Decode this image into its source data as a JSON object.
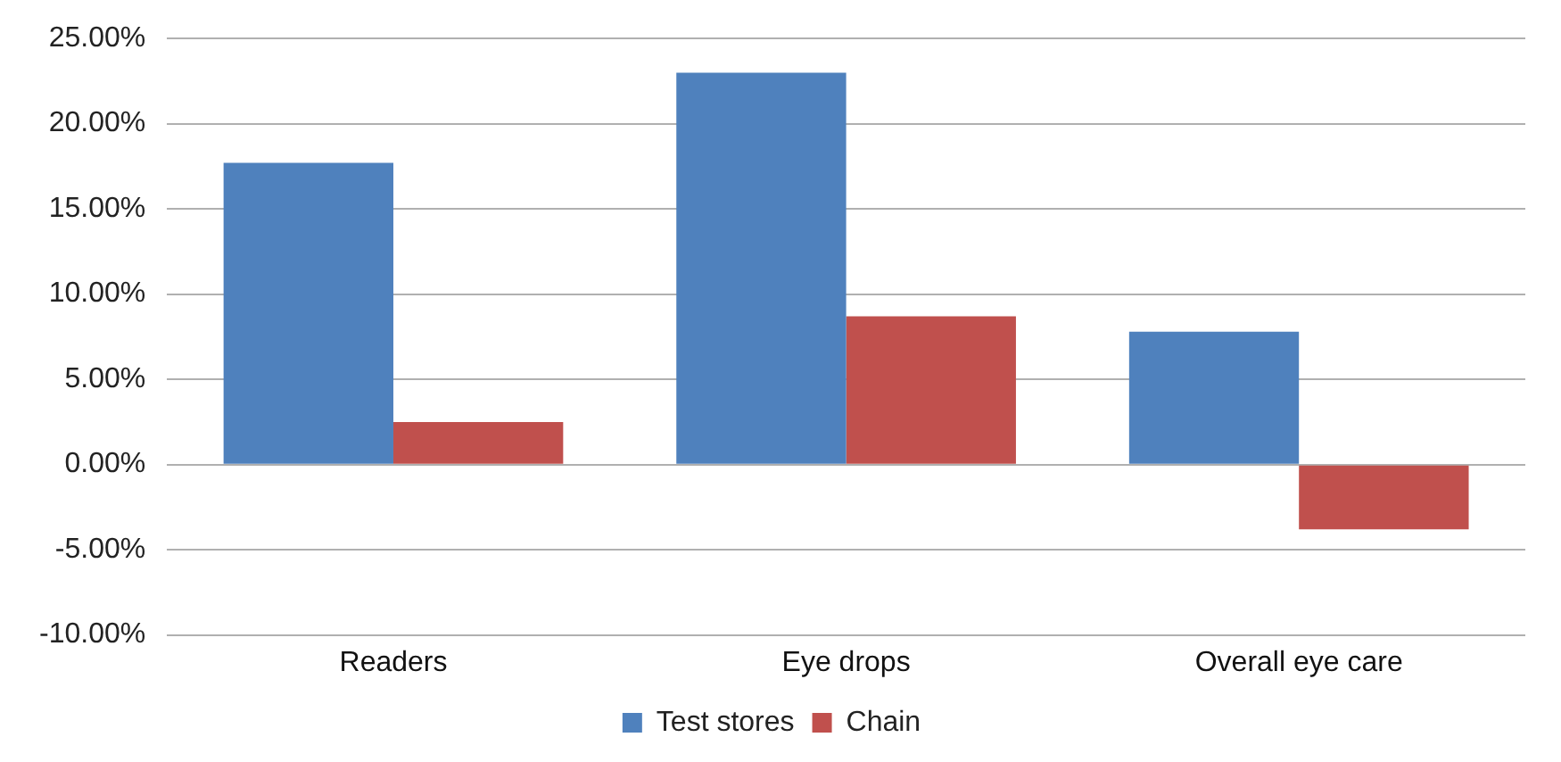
{
  "chart_data": {
    "type": "bar",
    "categories": [
      "Readers",
      "Eye drops",
      "Overall eye care"
    ],
    "series": [
      {
        "name": "Test stores",
        "color": "#4f81bd",
        "values": [
          17.7,
          23.0,
          7.8
        ]
      },
      {
        "name": "Chain",
        "color": "#c0504d",
        "values": [
          2.5,
          8.7,
          -3.8
        ]
      }
    ],
    "ylim": [
      -10,
      25
    ],
    "yticks": [
      {
        "value": -10,
        "label": "-10.00%"
      },
      {
        "value": -5,
        "label": "-5.00%"
      },
      {
        "value": 0,
        "label": "0.00%"
      },
      {
        "value": 5,
        "label": "5.00%"
      },
      {
        "value": 10,
        "label": "10.00%"
      },
      {
        "value": 15,
        "label": "15.00%"
      },
      {
        "value": 20,
        "label": "20.00%"
      },
      {
        "value": 25,
        "label": "25.00%"
      }
    ],
    "grid": "y",
    "legend": "bottom"
  }
}
